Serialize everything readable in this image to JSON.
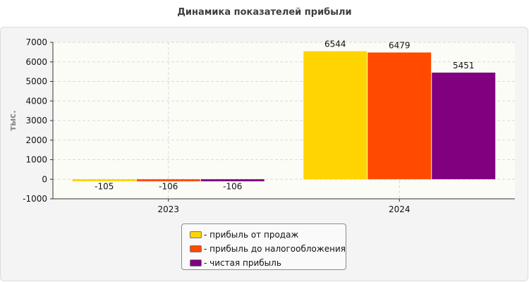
{
  "chart_data": {
    "type": "bar",
    "title": "Динамика показателей прибыли",
    "ylabel": "тыс.",
    "xlabel": "",
    "categories": [
      "2023",
      "2024"
    ],
    "series": [
      {
        "name": "- прибыль от продаж",
        "values": [
          -105,
          6544
        ],
        "color": "#ffd400"
      },
      {
        "name": "- прибыль до налогообложения",
        "values": [
          -106,
          6479
        ],
        "color": "#ff4a00"
      },
      {
        "name": "- чистая прибыль",
        "values": [
          -106,
          5451
        ],
        "color": "#800080"
      }
    ],
    "data_labels": [
      [
        "-105",
        "-106",
        "-106"
      ],
      [
        "6544",
        "6479",
        "5451"
      ]
    ],
    "ylim": [
      -1000,
      7000
    ],
    "yticks": [
      -1000,
      0,
      1000,
      2000,
      3000,
      4000,
      5000,
      6000,
      7000
    ],
    "grid": true,
    "legend_position": "bottom-center"
  }
}
